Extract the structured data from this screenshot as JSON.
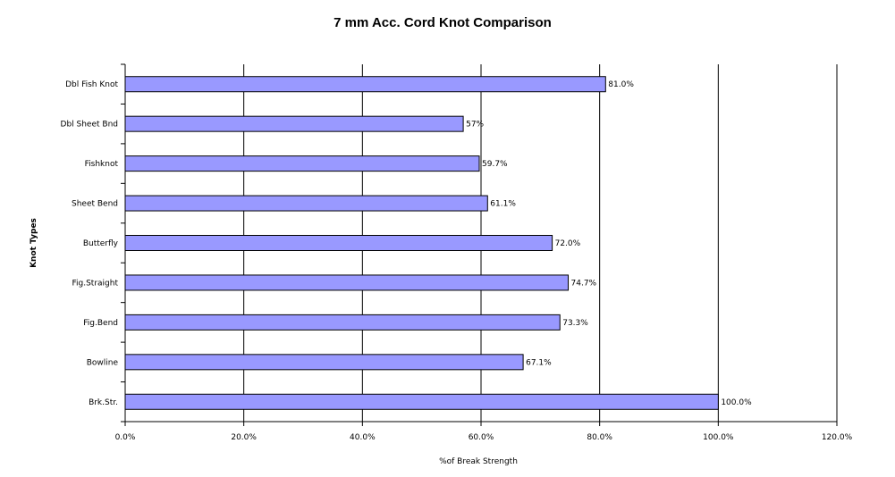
{
  "chart_data": {
    "type": "bar",
    "orientation": "horizontal",
    "title": "7 mm Acc. Cord Knot Comparison",
    "xlabel": "%of Break Strength",
    "ylabel": "Knot Types",
    "categories": [
      "Dbl Fish Knot",
      "Dbl Sheet Bnd",
      "Fishknot",
      "Sheet Bend",
      "Butterfly",
      "Fig.Straight",
      "Fig.Bend",
      "Bowline",
      "Brk.Str."
    ],
    "values": [
      81.0,
      57,
      59.7,
      61.1,
      72.0,
      74.7,
      73.3,
      67.1,
      100.0
    ],
    "data_labels": [
      "81.0%",
      "57%",
      "59.7%",
      "61.1%",
      "72.0%",
      "74.7%",
      "73.3%",
      "67.1%",
      "100.0%"
    ],
    "xlim": [
      0,
      120
    ],
    "x_ticks": [
      "0.0%",
      "20.0%",
      "40.0%",
      "60.0%",
      "80.0%",
      "100.0%",
      "120.0%"
    ],
    "grid": "vertical major gridlines",
    "bar_color": "#9999ff",
    "bar_edge_color": "#000000"
  }
}
